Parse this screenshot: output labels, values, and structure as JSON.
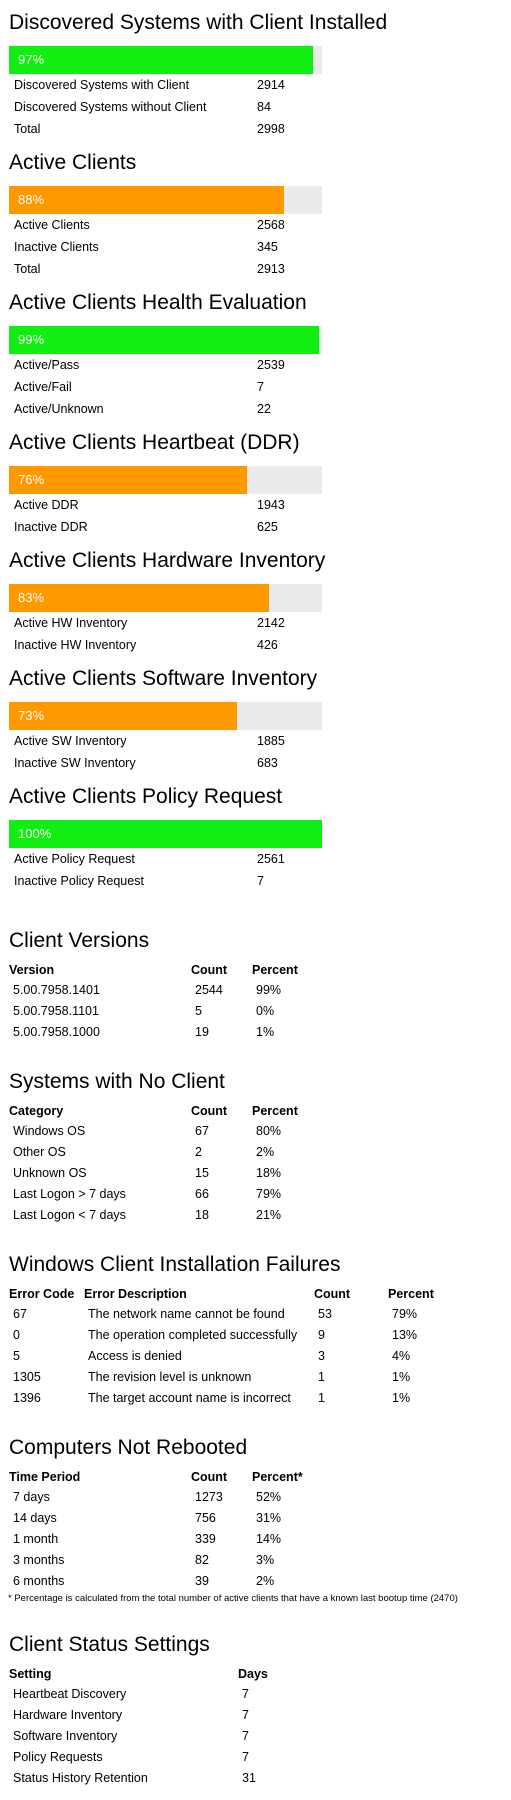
{
  "bar_sections": [
    {
      "title": "Discovered Systems with Client Installed",
      "percent": 97,
      "percent_label": "97%",
      "color": "#11ee11",
      "rows": [
        {
          "label": "Discovered Systems with Client",
          "value": 2914
        },
        {
          "label": "Discovered Systems without Client",
          "value": 84
        },
        {
          "label": "Total",
          "value": 2998
        }
      ]
    },
    {
      "title": "Active Clients",
      "percent": 88,
      "percent_label": "88%",
      "color": "#ff9900",
      "rows": [
        {
          "label": "Active Clients",
          "value": 2568
        },
        {
          "label": "Inactive Clients",
          "value": 345
        },
        {
          "label": "Total",
          "value": 2913
        }
      ]
    },
    {
      "title": "Active Clients Health Evaluation",
      "percent": 99,
      "percent_label": "99%",
      "color": "#11ee11",
      "rows": [
        {
          "label": "Active/Pass",
          "value": 2539
        },
        {
          "label": "Active/Fail",
          "value": 7
        },
        {
          "label": "Active/Unknown",
          "value": 22
        }
      ]
    },
    {
      "title": "Active Clients Heartbeat (DDR)",
      "percent": 76,
      "percent_label": "76%",
      "color": "#ff9900",
      "rows": [
        {
          "label": "Active DDR",
          "value": 1943
        },
        {
          "label": "Inactive DDR",
          "value": 625
        }
      ]
    },
    {
      "title": "Active Clients Hardware Inventory",
      "percent": 83,
      "percent_label": "83%",
      "color": "#ff9900",
      "rows": [
        {
          "label": "Active HW Inventory",
          "value": 2142
        },
        {
          "label": "Inactive HW Inventory",
          "value": 426
        }
      ]
    },
    {
      "title": "Active Clients Software Inventory",
      "percent": 73,
      "percent_label": "73%",
      "color": "#ff9900",
      "rows": [
        {
          "label": "Active SW Inventory",
          "value": 1885
        },
        {
          "label": "Inactive SW Inventory",
          "value": 683
        }
      ]
    },
    {
      "title": "Active Clients Policy Request",
      "percent": 100,
      "percent_label": "100%",
      "color": "#11ee11",
      "rows": [
        {
          "label": "Active Policy Request",
          "value": 2561
        },
        {
          "label": "Inactive Policy Request",
          "value": 7
        }
      ]
    }
  ],
  "tables": [
    {
      "title": "Client Versions",
      "columns": [
        "Version",
        "Count",
        "Percent"
      ],
      "rows": [
        [
          "5.00.7958.1401",
          2544,
          "99%"
        ],
        [
          "5.00.7958.1101",
          5,
          "0%"
        ],
        [
          "5.00.7958.1000",
          19,
          "1%"
        ]
      ]
    },
    {
      "title": "Systems with No Client",
      "columns": [
        "Category",
        "Count",
        "Percent"
      ],
      "rows": [
        [
          "Windows OS",
          67,
          "80%"
        ],
        [
          "Other OS",
          2,
          "2%"
        ],
        [
          "Unknown OS",
          15,
          "18%"
        ],
        [
          "Last Logon > 7 days",
          66,
          "79%"
        ],
        [
          "Last Logon < 7 days",
          18,
          "21%"
        ]
      ]
    },
    {
      "title": "Windows Client Installation Failures",
      "columns": [
        "Error Code",
        "Error Description",
        "Count",
        "Percent"
      ],
      "rows": [
        [
          67,
          "The network name cannot be found",
          53,
          "79%"
        ],
        [
          0,
          "The operation completed successfully",
          9,
          "13%"
        ],
        [
          5,
          "Access is denied",
          3,
          "4%"
        ],
        [
          1305,
          "The revision level is unknown",
          1,
          "1%"
        ],
        [
          1396,
          "The target account name is incorrect",
          1,
          "1%"
        ]
      ]
    },
    {
      "title": "Computers Not Rebooted",
      "columns": [
        "Time Period",
        "Count",
        "Percent*"
      ],
      "rows": [
        [
          "7 days",
          1273,
          "52%"
        ],
        [
          "14 days",
          756,
          "31%"
        ],
        [
          "1 month",
          339,
          "14%"
        ],
        [
          "3 months",
          82,
          "3%"
        ],
        [
          "6 months",
          39,
          "2%"
        ]
      ],
      "footnote": "* Percentage is calculated from the total number of active clients that have a known last bootup time (2470)"
    },
    {
      "title": "Client Status Settings",
      "columns": [
        "Setting",
        "Days"
      ],
      "rows": [
        [
          "Heartbeat Discovery",
          7
        ],
        [
          "Hardware Inventory",
          7
        ],
        [
          "Software Inventory",
          7
        ],
        [
          "Policy Requests",
          7
        ],
        [
          "Status History Retention",
          31
        ]
      ]
    }
  ]
}
